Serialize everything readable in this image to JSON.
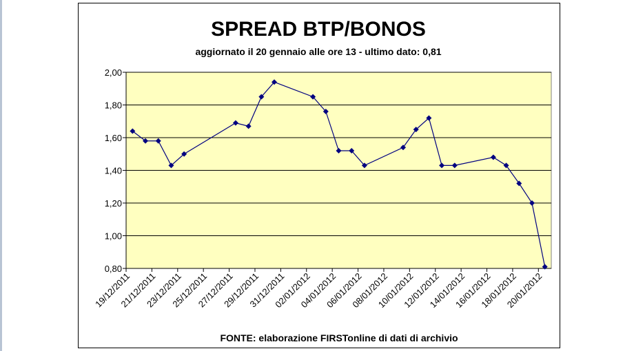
{
  "chart_data": {
    "type": "line",
    "title": "SPREAD BTP/BONOS",
    "subtitle": "aggiornato il 20 gennaio alle ore 13 - ultimo dato: 0,81",
    "source": "FONTE: elaborazione FIRSTonline di dati di archivio",
    "x": [
      "19/12/2011",
      "20/12/2011",
      "21/12/2011",
      "22/12/2011",
      "23/12/2011",
      "27/12/2011",
      "28/12/2011",
      "29/12/2011",
      "30/12/2011",
      "02/01/2012",
      "03/01/2012",
      "04/01/2012",
      "05/01/2012",
      "06/01/2012",
      "09/01/2012",
      "10/01/2012",
      "11/01/2012",
      "12/01/2012",
      "13/01/2012",
      "16/01/2012",
      "17/01/2012",
      "18/01/2012",
      "19/01/2012",
      "20/01/2012"
    ],
    "series": [
      {
        "name": "Spread",
        "color": "#000080",
        "values": [
          1.64,
          1.58,
          1.58,
          1.43,
          1.5,
          1.69,
          1.67,
          1.85,
          1.94,
          1.85,
          1.76,
          1.52,
          1.52,
          1.43,
          1.54,
          1.65,
          1.72,
          1.43,
          1.43,
          1.48,
          1.43,
          1.32,
          1.2,
          0.81
        ]
      }
    ],
    "xlim": [
      "19/12/2011",
      "21/01/2012"
    ],
    "xticks": [
      "19/12/2011",
      "21/12/2011",
      "23/12/2011",
      "25/12/2011",
      "27/12/2011",
      "29/12/2011",
      "31/12/2011",
      "02/01/2012",
      "04/01/2012",
      "06/01/2012",
      "08/01/2012",
      "10/01/2012",
      "12/01/2012",
      "14/01/2012",
      "16/01/2012",
      "18/01/2012",
      "20/01/2012"
    ],
    "ylim": [
      0.8,
      2.0
    ],
    "yticks": [
      {
        "value": 0.8,
        "label": "0,80"
      },
      {
        "value": 1.0,
        "label": "1,00"
      },
      {
        "value": 1.2,
        "label": "1,20"
      },
      {
        "value": 1.4,
        "label": "1,40"
      },
      {
        "value": 1.6,
        "label": "1,60"
      },
      {
        "value": 1.8,
        "label": "1,80"
      },
      {
        "value": 2.0,
        "label": "2,00"
      }
    ],
    "grid": true,
    "plot_background": "#ffffc0"
  }
}
